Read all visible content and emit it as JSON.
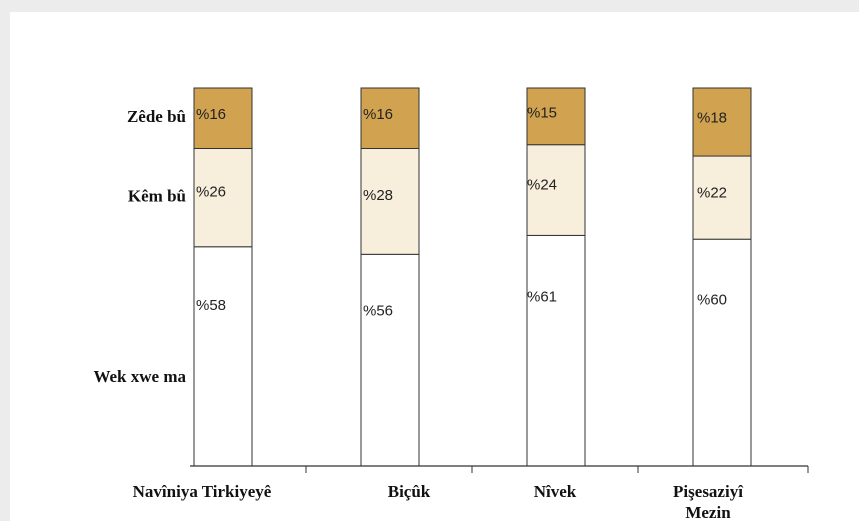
{
  "chart_data": {
    "type": "bar",
    "stacked": true,
    "percent_prefix": "%",
    "categories": [
      "Navîniya Tirkiyeyê",
      "Biçûk",
      "Nîvek",
      "Pişesaziyî Mezin"
    ],
    "series": [
      {
        "name": "Wek xwe ma",
        "values": [
          58,
          56,
          61,
          60
        ],
        "color": "#ffffff"
      },
      {
        "name": "Kêm bû",
        "values": [
          26,
          28,
          24,
          22
        ],
        "color": "#f7eedb"
      },
      {
        "name": "Zêde bû",
        "values": [
          16,
          16,
          15,
          18
        ],
        "color": "#d1a350"
      }
    ],
    "ylim": [
      0,
      100
    ],
    "grid": false,
    "legend": "left-of-first-bar"
  }
}
